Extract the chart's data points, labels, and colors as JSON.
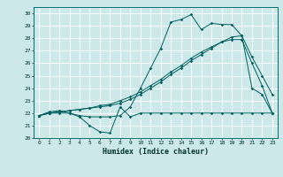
{
  "xlabel": "Humidex (Indice chaleur)",
  "bg_color": "#cce8e8",
  "grid_color": "#ffffff",
  "line_color": "#006060",
  "xlim": [
    -0.5,
    23.5
  ],
  "ylim": [
    20,
    30.5
  ],
  "yticks": [
    20,
    21,
    22,
    23,
    24,
    25,
    26,
    27,
    28,
    29,
    30
  ],
  "xticks": [
    0,
    1,
    2,
    3,
    4,
    5,
    6,
    7,
    8,
    9,
    10,
    11,
    12,
    13,
    14,
    15,
    16,
    17,
    18,
    19,
    20,
    21,
    22,
    23
  ],
  "line1_flat": [
    21.8,
    22.0,
    22.0,
    22.0,
    21.7,
    21.0,
    20.5,
    20.4,
    22.5,
    21.7,
    22.0,
    22.0,
    22.0,
    22.0,
    22.0,
    22.0,
    22.0,
    22.0,
    22.0,
    22.0,
    22.0,
    22.0,
    22.0,
    22.0
  ],
  "line2_peak": [
    21.8,
    22.1,
    22.2,
    22.0,
    21.8,
    21.7,
    21.7,
    21.7,
    21.8,
    22.5,
    24.0,
    25.6,
    27.2,
    29.3,
    29.5,
    29.9,
    28.7,
    29.2,
    29.1,
    29.1,
    28.2,
    24.0,
    23.5,
    22.0
  ],
  "line3_rise": [
    21.8,
    22.0,
    22.1,
    22.2,
    22.3,
    22.4,
    22.5,
    22.6,
    22.8,
    23.1,
    23.5,
    24.0,
    24.5,
    25.1,
    25.6,
    26.2,
    26.7,
    27.2,
    27.7,
    28.1,
    28.2,
    26.5,
    25.0,
    23.5
  ],
  "line4_rise2": [
    21.8,
    22.0,
    22.1,
    22.2,
    22.3,
    22.4,
    22.6,
    22.7,
    23.0,
    23.3,
    23.7,
    24.2,
    24.7,
    25.3,
    25.8,
    26.4,
    26.9,
    27.3,
    27.7,
    27.9,
    27.9,
    26.0,
    24.2,
    22.0
  ],
  "title_fontsize": 6,
  "xlabel_fontsize": 6,
  "tick_fontsize": 4.5,
  "linewidth": 0.7,
  "markersize": 1.8
}
